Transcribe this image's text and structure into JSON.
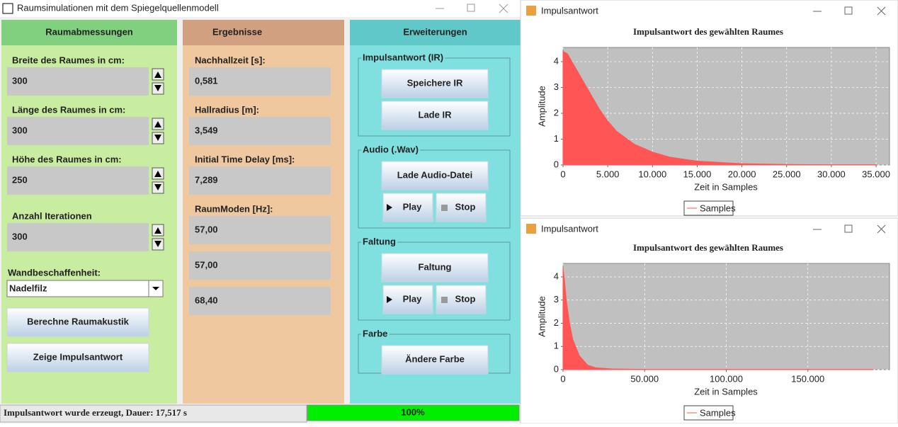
{
  "window": {
    "title": "Raumsimulationen mit dem Spiegelquellenmodell"
  },
  "panels": {
    "dimensions": {
      "header": "Raumabmessungen",
      "fields": [
        {
          "label": "Breite des Raumes in cm:",
          "value": "300"
        },
        {
          "label": "Länge des Raumes in cm:",
          "value": "300"
        },
        {
          "label": "Höhe des Raumes in cm:",
          "value": "250"
        },
        {
          "label": "Anzahl Iterationen",
          "value": "300"
        }
      ],
      "wall_label": "Wandbeschaffenheit:",
      "wall_value": "Nadelfilz",
      "buttons": [
        "Berechne Raumakustik",
        "Zeige Impulsantwort"
      ]
    },
    "results": {
      "header": "Ergebnisse",
      "fields": [
        {
          "label": "Nachhallzeit [s]:",
          "values": [
            "0,581"
          ]
        },
        {
          "label": "Hallradius [m]:",
          "values": [
            "3,549"
          ]
        },
        {
          "label": "Initial Time Delay  [ms]:",
          "values": [
            "7,289"
          ]
        },
        {
          "label": "RaumModen [Hz]:",
          "values": [
            "57,00",
            "57,00",
            "68,40"
          ]
        }
      ]
    },
    "extensions": {
      "header": "Erweiterungen",
      "groups": [
        {
          "title": "Impulsantwort (IR)",
          "buttons": [
            "Speichere IR",
            "Lade IR"
          ]
        },
        {
          "title": "Audio (.Wav)",
          "buttons": [
            "Lade Audio-Datei",
            "Play",
            "Stop"
          ]
        },
        {
          "title": "Faltung",
          "buttons": [
            "Faltung",
            "Play",
            "Stop"
          ]
        },
        {
          "title": "Farbe",
          "buttons": [
            "Ändere Farbe"
          ]
        }
      ]
    }
  },
  "status": {
    "message": "Impulsantwort wurde erzeugt, Dauer: 17,517 s",
    "progress": "100%"
  },
  "plot_windows": [
    {
      "title": "Impulsantwort"
    },
    {
      "title": "Impulsantwort"
    }
  ],
  "chart_data": [
    {
      "type": "area",
      "title": "Impulsantwort des gewählten Raumes",
      "x_label": "Zeit in Samples",
      "y_label": "Amplitude",
      "x": [
        0,
        500,
        1000,
        2000,
        3000,
        4000,
        5000,
        6000,
        8000,
        10000,
        12000,
        15000,
        20000,
        25000,
        30000,
        35000
      ],
      "series": [
        {
          "name": "Samples",
          "color": "#ff5555",
          "values": [
            4.4,
            4.3,
            4.0,
            3.4,
            2.8,
            2.2,
            1.7,
            1.3,
            0.8,
            0.5,
            0.3,
            0.15,
            0.05,
            0.02,
            0.01,
            0.01
          ]
        }
      ],
      "xlim": [
        0,
        36500
      ],
      "xticks": [
        0,
        {
          "value": 5000,
          "label": "5.000"
        },
        {
          "value": 10000,
          "label": "10.000"
        },
        {
          "value": 15000,
          "label": "15.000"
        },
        {
          "value": 20000,
          "label": "20.000"
        },
        {
          "value": 25000,
          "label": "25.000"
        },
        {
          "value": 30000,
          "label": "30.000"
        },
        {
          "value": 35000,
          "label": "35.000"
        }
      ],
      "ylim": [
        0,
        4.55
      ],
      "yticks": [
        0,
        1,
        2,
        3,
        4
      ],
      "grid": true,
      "legend": "bottom"
    },
    {
      "type": "area",
      "title": "Impulsantwort des gewählten Raumes",
      "x_label": "Zeit in Samples",
      "y_label": "Amplitude",
      "x": [
        0,
        1000,
        2000,
        4000,
        6000,
        10000,
        15000,
        20000,
        30000,
        50000,
        100000,
        150000,
        190000
      ],
      "series": [
        {
          "name": "Samples",
          "color": "#ff5555",
          "values": [
            4.4,
            3.8,
            3.0,
            2.0,
            1.3,
            0.6,
            0.2,
            0.08,
            0.03,
            0.01,
            0.01,
            0.01,
            0.01
          ]
        }
      ],
      "xlim": [
        0,
        200000
      ],
      "xticks": [
        0,
        {
          "value": 50000,
          "label": "50.000"
        },
        {
          "value": 100000,
          "label": "100.000"
        },
        {
          "value": 150000,
          "label": "150.000"
        }
      ],
      "ylim": [
        0,
        4.58
      ],
      "yticks": [
        0,
        1,
        2,
        3,
        4
      ],
      "grid": true,
      "legend": "bottom"
    }
  ]
}
